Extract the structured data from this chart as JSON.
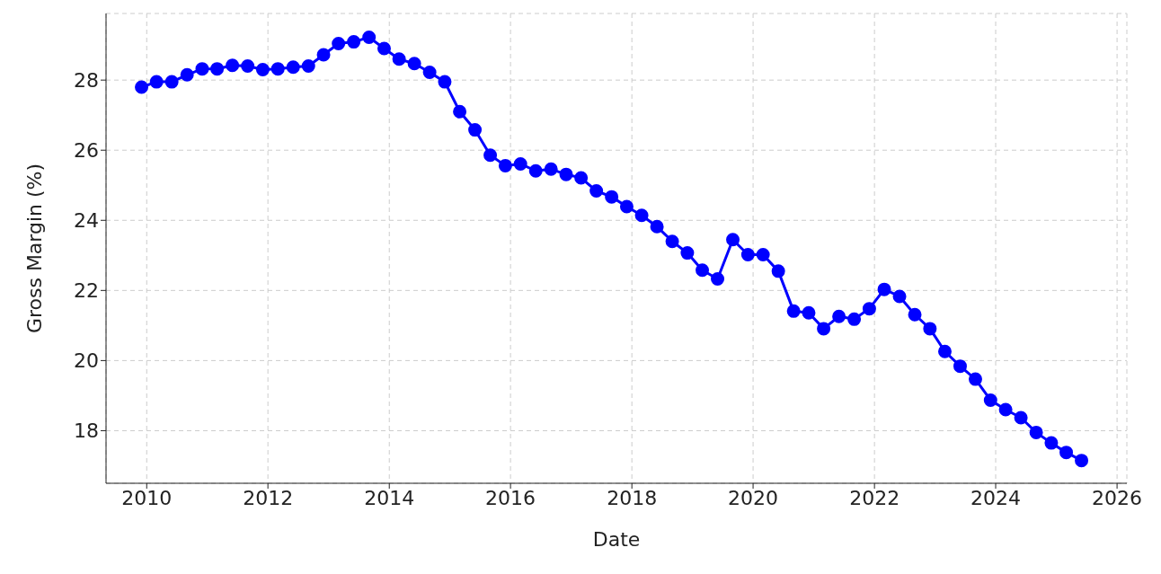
{
  "chart_data": {
    "type": "line",
    "xlabel": "Date",
    "ylabel": "Gross Margin (%)",
    "x": [
      "2009-12",
      "2010-03",
      "2010-06",
      "2010-09",
      "2010-12",
      "2011-03",
      "2011-06",
      "2011-09",
      "2011-12",
      "2012-03",
      "2012-06",
      "2012-09",
      "2012-12",
      "2013-03",
      "2013-06",
      "2013-09",
      "2013-12",
      "2014-03",
      "2014-06",
      "2014-09",
      "2014-12",
      "2015-03",
      "2015-06",
      "2015-09",
      "2015-12",
      "2016-03",
      "2016-06",
      "2016-09",
      "2016-12",
      "2017-03",
      "2017-06",
      "2017-09",
      "2017-12",
      "2018-03",
      "2018-06",
      "2018-09",
      "2018-12",
      "2019-03",
      "2019-06",
      "2019-09",
      "2019-12",
      "2020-03",
      "2020-06",
      "2020-09",
      "2020-12",
      "2021-03",
      "2021-06",
      "2021-09",
      "2021-12",
      "2022-03",
      "2022-06",
      "2022-09",
      "2022-12",
      "2023-03",
      "2023-06",
      "2023-09",
      "2023-12",
      "2024-03",
      "2024-06",
      "2024-09",
      "2024-12",
      "2025-03",
      "2025-06"
    ],
    "series": [
      {
        "color": "#0000ff",
        "values": [
          27.8,
          27.95,
          27.95,
          28.15,
          28.32,
          28.32,
          28.42,
          28.4,
          28.3,
          28.32,
          28.37,
          28.4,
          28.72,
          29.04,
          29.09,
          29.22,
          28.9,
          28.6,
          28.47,
          28.22,
          27.95,
          27.1,
          26.58,
          25.86,
          25.56,
          25.61,
          25.41,
          25.46,
          25.31,
          25.21,
          24.84,
          24.67,
          24.39,
          24.14,
          23.82,
          23.4,
          23.07,
          22.58,
          22.33,
          23.45,
          23.02,
          23.02,
          22.55,
          21.41,
          21.36,
          20.91,
          21.26,
          21.18,
          21.48,
          22.03,
          21.83,
          21.31,
          20.91,
          20.26,
          19.84,
          19.47,
          18.87,
          18.6,
          18.37,
          17.95,
          17.65,
          17.38,
          17.15
        ]
      }
    ],
    "xlim": [
      "2009-05",
      "2026-03"
    ],
    "xticks": [
      "2010",
      "2012",
      "2014",
      "2016",
      "2018",
      "2020",
      "2022",
      "2024",
      "2026"
    ],
    "ylim": [
      16.5,
      29.9
    ],
    "yticks": [
      18,
      20,
      22,
      24,
      26,
      28
    ],
    "grid": true,
    "marker": "circle",
    "line_style": "solid",
    "legend": false
  }
}
